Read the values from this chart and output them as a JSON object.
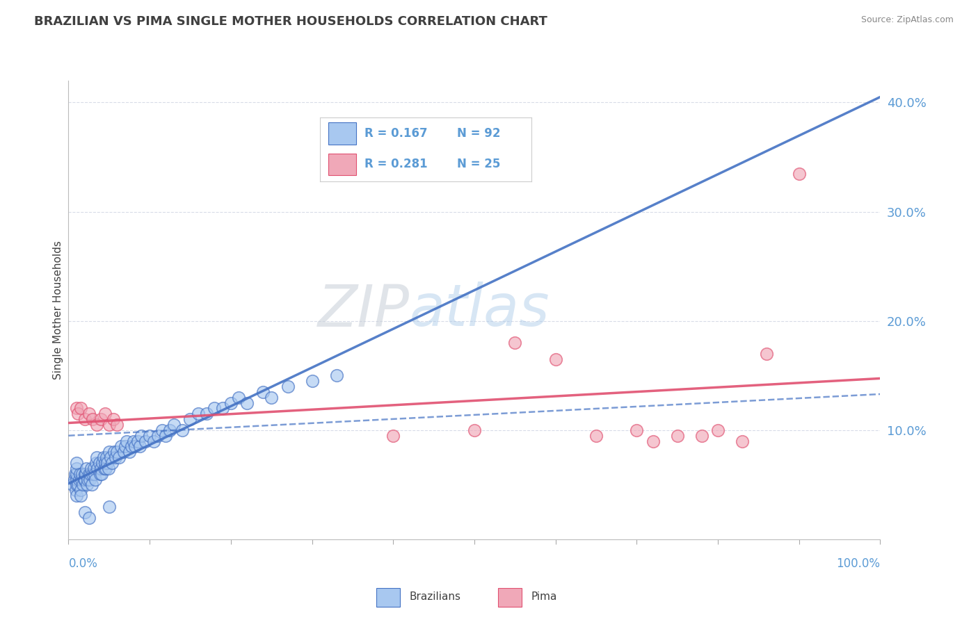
{
  "title": "BRAZILIAN VS PIMA SINGLE MOTHER HOUSEHOLDS CORRELATION CHART",
  "source": "Source: ZipAtlas.com",
  "ylabel": "Single Mother Households",
  "xmin": 0.0,
  "xmax": 1.0,
  "ymin": 0.0,
  "ymax": 0.42,
  "r_brazilian": 0.167,
  "n_brazilian": 92,
  "r_pima": 0.281,
  "n_pima": 25,
  "color_brazilian": "#a8c8f0",
  "color_pima": "#f0a8b8",
  "color_line_brazilian": "#4472c4",
  "color_line_pima": "#e05070",
  "title_color": "#404040",
  "axis_label_color": "#5b9bd5",
  "background_color": "#ffffff",
  "grid_color": "#d8dce8",
  "brazilian_x": [
    0.005,
    0.007,
    0.008,
    0.009,
    0.01,
    0.01,
    0.01,
    0.01,
    0.01,
    0.01,
    0.012,
    0.013,
    0.014,
    0.015,
    0.015,
    0.016,
    0.017,
    0.018,
    0.019,
    0.02,
    0.02,
    0.021,
    0.022,
    0.023,
    0.024,
    0.025,
    0.026,
    0.027,
    0.028,
    0.029,
    0.03,
    0.031,
    0.032,
    0.033,
    0.034,
    0.035,
    0.036,
    0.038,
    0.039,
    0.04,
    0.041,
    0.042,
    0.043,
    0.044,
    0.045,
    0.046,
    0.047,
    0.048,
    0.049,
    0.05,
    0.052,
    0.054,
    0.056,
    0.058,
    0.06,
    0.062,
    0.065,
    0.068,
    0.07,
    0.072,
    0.075,
    0.078,
    0.08,
    0.082,
    0.085,
    0.088,
    0.09,
    0.095,
    0.1,
    0.105,
    0.11,
    0.115,
    0.12,
    0.125,
    0.13,
    0.14,
    0.15,
    0.16,
    0.17,
    0.18,
    0.19,
    0.2,
    0.21,
    0.22,
    0.24,
    0.25,
    0.27,
    0.3,
    0.33,
    0.05,
    0.02,
    0.025
  ],
  "brazilian_y": [
    0.05,
    0.055,
    0.06,
    0.045,
    0.04,
    0.05,
    0.055,
    0.06,
    0.065,
    0.07,
    0.05,
    0.055,
    0.06,
    0.045,
    0.04,
    0.055,
    0.06,
    0.05,
    0.055,
    0.06,
    0.055,
    0.06,
    0.065,
    0.05,
    0.055,
    0.06,
    0.055,
    0.06,
    0.065,
    0.05,
    0.06,
    0.065,
    0.06,
    0.055,
    0.07,
    0.075,
    0.065,
    0.07,
    0.06,
    0.065,
    0.06,
    0.07,
    0.075,
    0.065,
    0.07,
    0.065,
    0.075,
    0.07,
    0.065,
    0.08,
    0.075,
    0.07,
    0.08,
    0.075,
    0.08,
    0.075,
    0.085,
    0.08,
    0.085,
    0.09,
    0.08,
    0.085,
    0.09,
    0.085,
    0.09,
    0.085,
    0.095,
    0.09,
    0.095,
    0.09,
    0.095,
    0.1,
    0.095,
    0.1,
    0.105,
    0.1,
    0.11,
    0.115,
    0.115,
    0.12,
    0.12,
    0.125,
    0.13,
    0.125,
    0.135,
    0.13,
    0.14,
    0.145,
    0.15,
    0.03,
    0.025,
    0.02
  ],
  "pima_x": [
    0.01,
    0.012,
    0.015,
    0.02,
    0.025,
    0.03,
    0.035,
    0.04,
    0.045,
    0.05,
    0.055,
    0.06,
    0.4,
    0.5,
    0.55,
    0.6,
    0.65,
    0.7,
    0.72,
    0.75,
    0.78,
    0.8,
    0.83,
    0.86,
    0.9
  ],
  "pima_y": [
    0.12,
    0.115,
    0.12,
    0.11,
    0.115,
    0.11,
    0.105,
    0.11,
    0.115,
    0.105,
    0.11,
    0.105,
    0.095,
    0.1,
    0.18,
    0.165,
    0.095,
    0.1,
    0.09,
    0.095,
    0.095,
    0.1,
    0.09,
    0.17,
    0.335
  ]
}
